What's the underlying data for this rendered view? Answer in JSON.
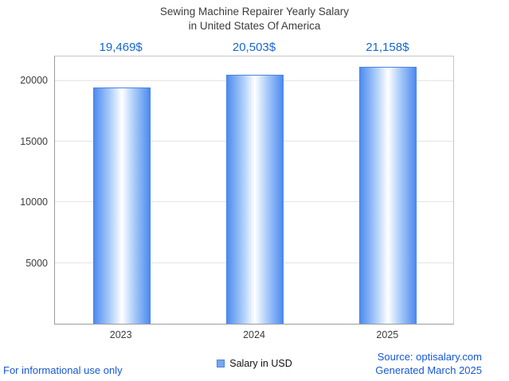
{
  "title": {
    "line1": "Sewing Machine Repairer Yearly Salary",
    "line2": "in United States Of America"
  },
  "chart_data": {
    "type": "bar",
    "title": "Sewing Machine Repairer Yearly Salary in United States Of America",
    "categories": [
      "2023",
      "2024",
      "2025"
    ],
    "values": [
      19469,
      20503,
      21158
    ],
    "value_labels": [
      "19,469$",
      "20,503$",
      "21,158$"
    ],
    "xlabel": "",
    "ylabel": "",
    "ylim": [
      0,
      22000
    ],
    "yticks": [
      5000,
      10000,
      15000,
      20000
    ],
    "grid": true,
    "legend": [
      "Salary in USD"
    ],
    "legend_position": "bottom",
    "bar_edge_color": "#4e8bf0",
    "bar_center_color": "#ffffff",
    "value_label_color": "#1566d4"
  },
  "legend": {
    "label": "Salary in USD",
    "swatch_color": "#7aa6ec"
  },
  "footer": {
    "left": "For informational use only",
    "source": "Source: optisalary.com",
    "generated": "Generated March 2025"
  }
}
